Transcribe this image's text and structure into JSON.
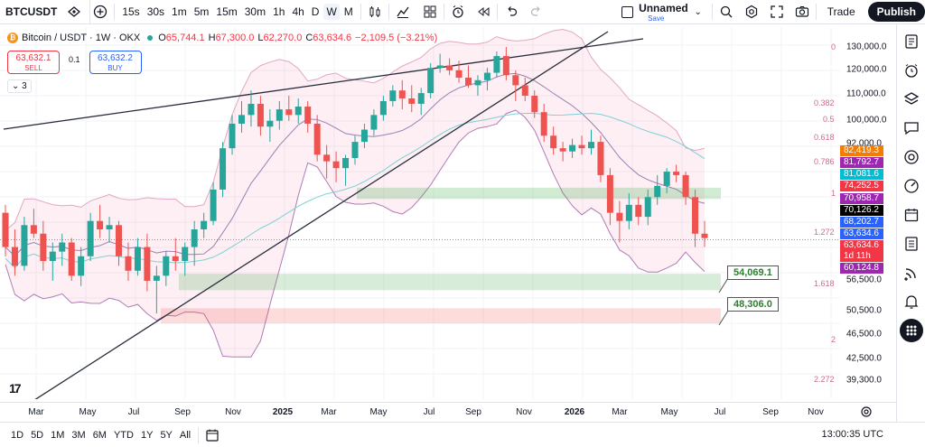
{
  "toolbar": {
    "symbol": "BTCUSDT",
    "intervals": [
      "15s",
      "30s",
      "1m",
      "5m",
      "15m",
      "30m",
      "1h",
      "4h",
      "D",
      "W",
      "M"
    ],
    "active_interval": "W",
    "layout_name": "Unnamed",
    "layout_status": "Save",
    "trade_label": "Trade",
    "publish_label": "Publish"
  },
  "legend": {
    "title": "Bitcoin / USDT · 1W · OKX",
    "o_key": "O",
    "o_val": "65,744.1",
    "h_key": "H",
    "h_val": "67,300.0",
    "l_key": "L",
    "l_val": "62,270.0",
    "c_key": "C",
    "c_val": "63,634.6",
    "change": "−2,109.5 (−3.21%)"
  },
  "sell": {
    "price": "63,632.1",
    "label": "SELL"
  },
  "buy": {
    "price": "63,632.2",
    "label": "BUY"
  },
  "spread": "0.1",
  "indicators_count": "3",
  "price_ticks": [
    "130,000.0",
    "120,000.0",
    "110,000.0",
    "100,000.0",
    "92,000.0",
    "56,500.0",
    "50,500.0",
    "46,500.0",
    "42,500.0",
    "39,300.0"
  ],
  "price_labels": [
    {
      "text": "82,419.3",
      "color": "#f57c00"
    },
    {
      "text": "81,792.7",
      "color": "#9c27b0"
    },
    {
      "text": "81,081.6",
      "color": "#00bcd4"
    },
    {
      "text": "74,252.5",
      "color": "#f23645"
    },
    {
      "text": "70,958.7",
      "color": "#9c27b0"
    },
    {
      "text": "70,126.2",
      "color": "#000000"
    },
    {
      "text": "68,202.7",
      "color": "#2962ff"
    },
    {
      "text": "63,634.6",
      "color": "#2962ff"
    },
    {
      "text": "63,634.6",
      "color": "#f23645"
    },
    {
      "text": "1d 11h",
      "color": "#f23645"
    },
    {
      "text": "60,124.8",
      "color": "#9c27b0"
    }
  ],
  "fib_levels": [
    "0",
    "0.382",
    "0.5",
    "0.618",
    "0.786",
    "1",
    "1.272",
    "1.618",
    "2",
    "2.272"
  ],
  "targets": [
    "54,069.1",
    "48,306.0"
  ],
  "time_labels": [
    {
      "text": "Mar",
      "bold": false
    },
    {
      "text": "May",
      "bold": false
    },
    {
      "text": "Jul",
      "bold": false
    },
    {
      "text": "Sep",
      "bold": false
    },
    {
      "text": "Nov",
      "bold": false
    },
    {
      "text": "2025",
      "bold": true
    },
    {
      "text": "Mar",
      "bold": false
    },
    {
      "text": "May",
      "bold": false
    },
    {
      "text": "Jul",
      "bold": false
    },
    {
      "text": "Sep",
      "bold": false
    },
    {
      "text": "Nov",
      "bold": false
    },
    {
      "text": "2026",
      "bold": true
    },
    {
      "text": "Mar",
      "bold": false
    },
    {
      "text": "May",
      "bold": false
    },
    {
      "text": "Jul",
      "bold": false
    },
    {
      "text": "Sep",
      "bold": false
    },
    {
      "text": "Nov",
      "bold": false
    }
  ],
  "ranges": [
    "1D",
    "5D",
    "1M",
    "3M",
    "6M",
    "YTD",
    "1Y",
    "5Y",
    "All"
  ],
  "clock": "13:00:35 UTC",
  "chart_data": {
    "type": "candlestick",
    "symbol": "BTCUSDT",
    "interval": "1W",
    "ohlc": [
      [
        70,
        72,
        60,
        62
      ],
      [
        62,
        66,
        56,
        58
      ],
      [
        58,
        69,
        57,
        67
      ],
      [
        67,
        71,
        64,
        65
      ],
      [
        65,
        68,
        57,
        59
      ],
      [
        59,
        63,
        55,
        61
      ],
      [
        61,
        65,
        58,
        63
      ],
      [
        63,
        64,
        55,
        56
      ],
      [
        56,
        62,
        54,
        60
      ],
      [
        60,
        70,
        59,
        68
      ],
      [
        68,
        72,
        64,
        66
      ],
      [
        66,
        69,
        63,
        67
      ],
      [
        67,
        68,
        58,
        60
      ],
      [
        60,
        63,
        55,
        57
      ],
      [
        57,
        64,
        56,
        62
      ],
      [
        62,
        65,
        53,
        55
      ],
      [
        55,
        58,
        49,
        56
      ],
      [
        56,
        61,
        54,
        60
      ],
      [
        60,
        64,
        57,
        59
      ],
      [
        59,
        63,
        56,
        62
      ],
      [
        62,
        68,
        58,
        66
      ],
      [
        66,
        70,
        64,
        68
      ],
      [
        68,
        78,
        67,
        76
      ],
      [
        76,
        90,
        74,
        88
      ],
      [
        88,
        99,
        86,
        96
      ],
      [
        96,
        104,
        93,
        99
      ],
      [
        99,
        108,
        95,
        103
      ],
      [
        103,
        106,
        92,
        95
      ],
      [
        95,
        101,
        90,
        97
      ],
      [
        97,
        104,
        94,
        101
      ],
      [
        101,
        106,
        97,
        99
      ],
      [
        99,
        105,
        96,
        102
      ],
      [
        102,
        104,
        93,
        96
      ],
      [
        96,
        99,
        84,
        86
      ],
      [
        86,
        89,
        79,
        84
      ],
      [
        84,
        87,
        78,
        82
      ],
      [
        82,
        86,
        77,
        85
      ],
      [
        85,
        92,
        83,
        90
      ],
      [
        90,
        96,
        88,
        94
      ],
      [
        94,
        101,
        92,
        99
      ],
      [
        99,
        106,
        97,
        104
      ],
      [
        104,
        110,
        102,
        108
      ],
      [
        108,
        112,
        101,
        105
      ],
      [
        105,
        110,
        100,
        103
      ],
      [
        103,
        109,
        99,
        107
      ],
      [
        107,
        119,
        105,
        117
      ],
      [
        117,
        123,
        115,
        118
      ],
      [
        118,
        121,
        114,
        116
      ],
      [
        116,
        120,
        111,
        113
      ],
      [
        113,
        118,
        109,
        110
      ],
      [
        110,
        114,
        106,
        112
      ],
      [
        112,
        117,
        108,
        115
      ],
      [
        115,
        124,
        113,
        122
      ],
      [
        122,
        126,
        112,
        114
      ],
      [
        114,
        116,
        104,
        110
      ],
      [
        110,
        113,
        104,
        106
      ],
      [
        106,
        108,
        98,
        100
      ],
      [
        100,
        103,
        90,
        92
      ],
      [
        92,
        95,
        86,
        88
      ],
      [
        88,
        90,
        84,
        87
      ],
      [
        87,
        91,
        85,
        89
      ],
      [
        89,
        92,
        86,
        88
      ],
      [
        88,
        94,
        86,
        90
      ],
      [
        90,
        92,
        78,
        80
      ],
      [
        80,
        82,
        67,
        70
      ],
      [
        70,
        73,
        63,
        68
      ],
      [
        68,
        75,
        66,
        72
      ],
      [
        72,
        74,
        67,
        69
      ],
      [
        69,
        76,
        67,
        74
      ],
      [
        74,
        80,
        72,
        77
      ],
      [
        77,
        82,
        75,
        81
      ],
      [
        81,
        83,
        78,
        80
      ],
      [
        80,
        81,
        72,
        74
      ],
      [
        74,
        76,
        62,
        65
      ],
      [
        65,
        68,
        62,
        64
      ]
    ],
    "last_price": 63634.6,
    "fib_levels": [
      0,
      0.382,
      0.5,
      0.618,
      0.786,
      1,
      1.272,
      1.618,
      2,
      2.272
    ],
    "targets": [
      54069.1,
      48306.0
    ],
    "ylim": [
      39300,
      130000
    ]
  }
}
